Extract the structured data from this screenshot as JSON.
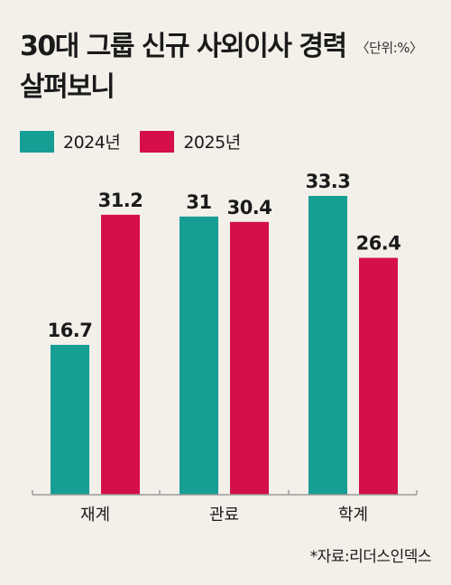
{
  "title": {
    "line1": "30대 그룹 신규 사외이사 경력",
    "unit": "〈단위:%〉",
    "line2": "살펴보니"
  },
  "source": "*자료:리더스인덱스",
  "colors": {
    "series_2024": "#169e95",
    "series_2025": "#d50f4a",
    "axis": "#9a9a9a"
  },
  "chart_data": {
    "type": "bar",
    "categories": [
      "재계",
      "관료",
      "학계"
    ],
    "series": [
      {
        "name": "2024년",
        "values": [
          16.7,
          31,
          33.3
        ]
      },
      {
        "name": "2025년",
        "values": [
          31.2,
          30.4,
          26.4
        ]
      }
    ],
    "unit": "%",
    "ylim": [
      0,
      33.3
    ],
    "grid": false,
    "legend_position": "top-left"
  }
}
